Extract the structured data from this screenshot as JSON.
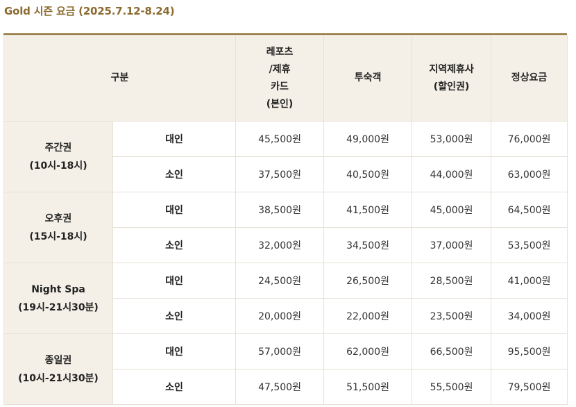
{
  "title": "Gold 시즌 요금 (2025.7.12-8.24)",
  "table": {
    "category_header": "구분",
    "price_headers": [
      [
        "레포츠",
        "/제휴",
        "카드",
        "(본인)"
      ],
      [
        "투숙객"
      ],
      [
        "지역제휴사",
        "(할인권)"
      ],
      [
        "정상요금"
      ]
    ],
    "groups": [
      {
        "name": "주간권",
        "hours": "(10시-18시)",
        "rows": [
          {
            "age": "대인",
            "prices": [
              "45,500원",
              "49,000원",
              "53,000원",
              "76,000원"
            ]
          },
          {
            "age": "소인",
            "prices": [
              "37,500원",
              "40,500원",
              "44,000원",
              "63,000원"
            ]
          }
        ]
      },
      {
        "name": "오후권",
        "hours": "(15시-18시)",
        "rows": [
          {
            "age": "대인",
            "prices": [
              "38,500원",
              "41,500원",
              "45,000원",
              "64,500원"
            ]
          },
          {
            "age": "소인",
            "prices": [
              "32,000원",
              "34,500원",
              "37,000원",
              "53,500원"
            ]
          }
        ]
      },
      {
        "name": "Night Spa",
        "hours": "(19시-21시30분)",
        "rows": [
          {
            "age": "대인",
            "prices": [
              "24,500원",
              "26,500원",
              "28,500원",
              "41,000원"
            ]
          },
          {
            "age": "소인",
            "prices": [
              "20,000원",
              "22,000원",
              "23,500원",
              "34,000원"
            ]
          }
        ]
      },
      {
        "name": "종일권",
        "hours": "(10시-21시30분)",
        "rows": [
          {
            "age": "대인",
            "prices": [
              "57,000원",
              "62,000원",
              "66,500원",
              "95,500원"
            ]
          },
          {
            "age": "소인",
            "prices": [
              "47,500원",
              "51,500원",
              "55,500원",
              "79,500원"
            ]
          }
        ]
      }
    ]
  }
}
